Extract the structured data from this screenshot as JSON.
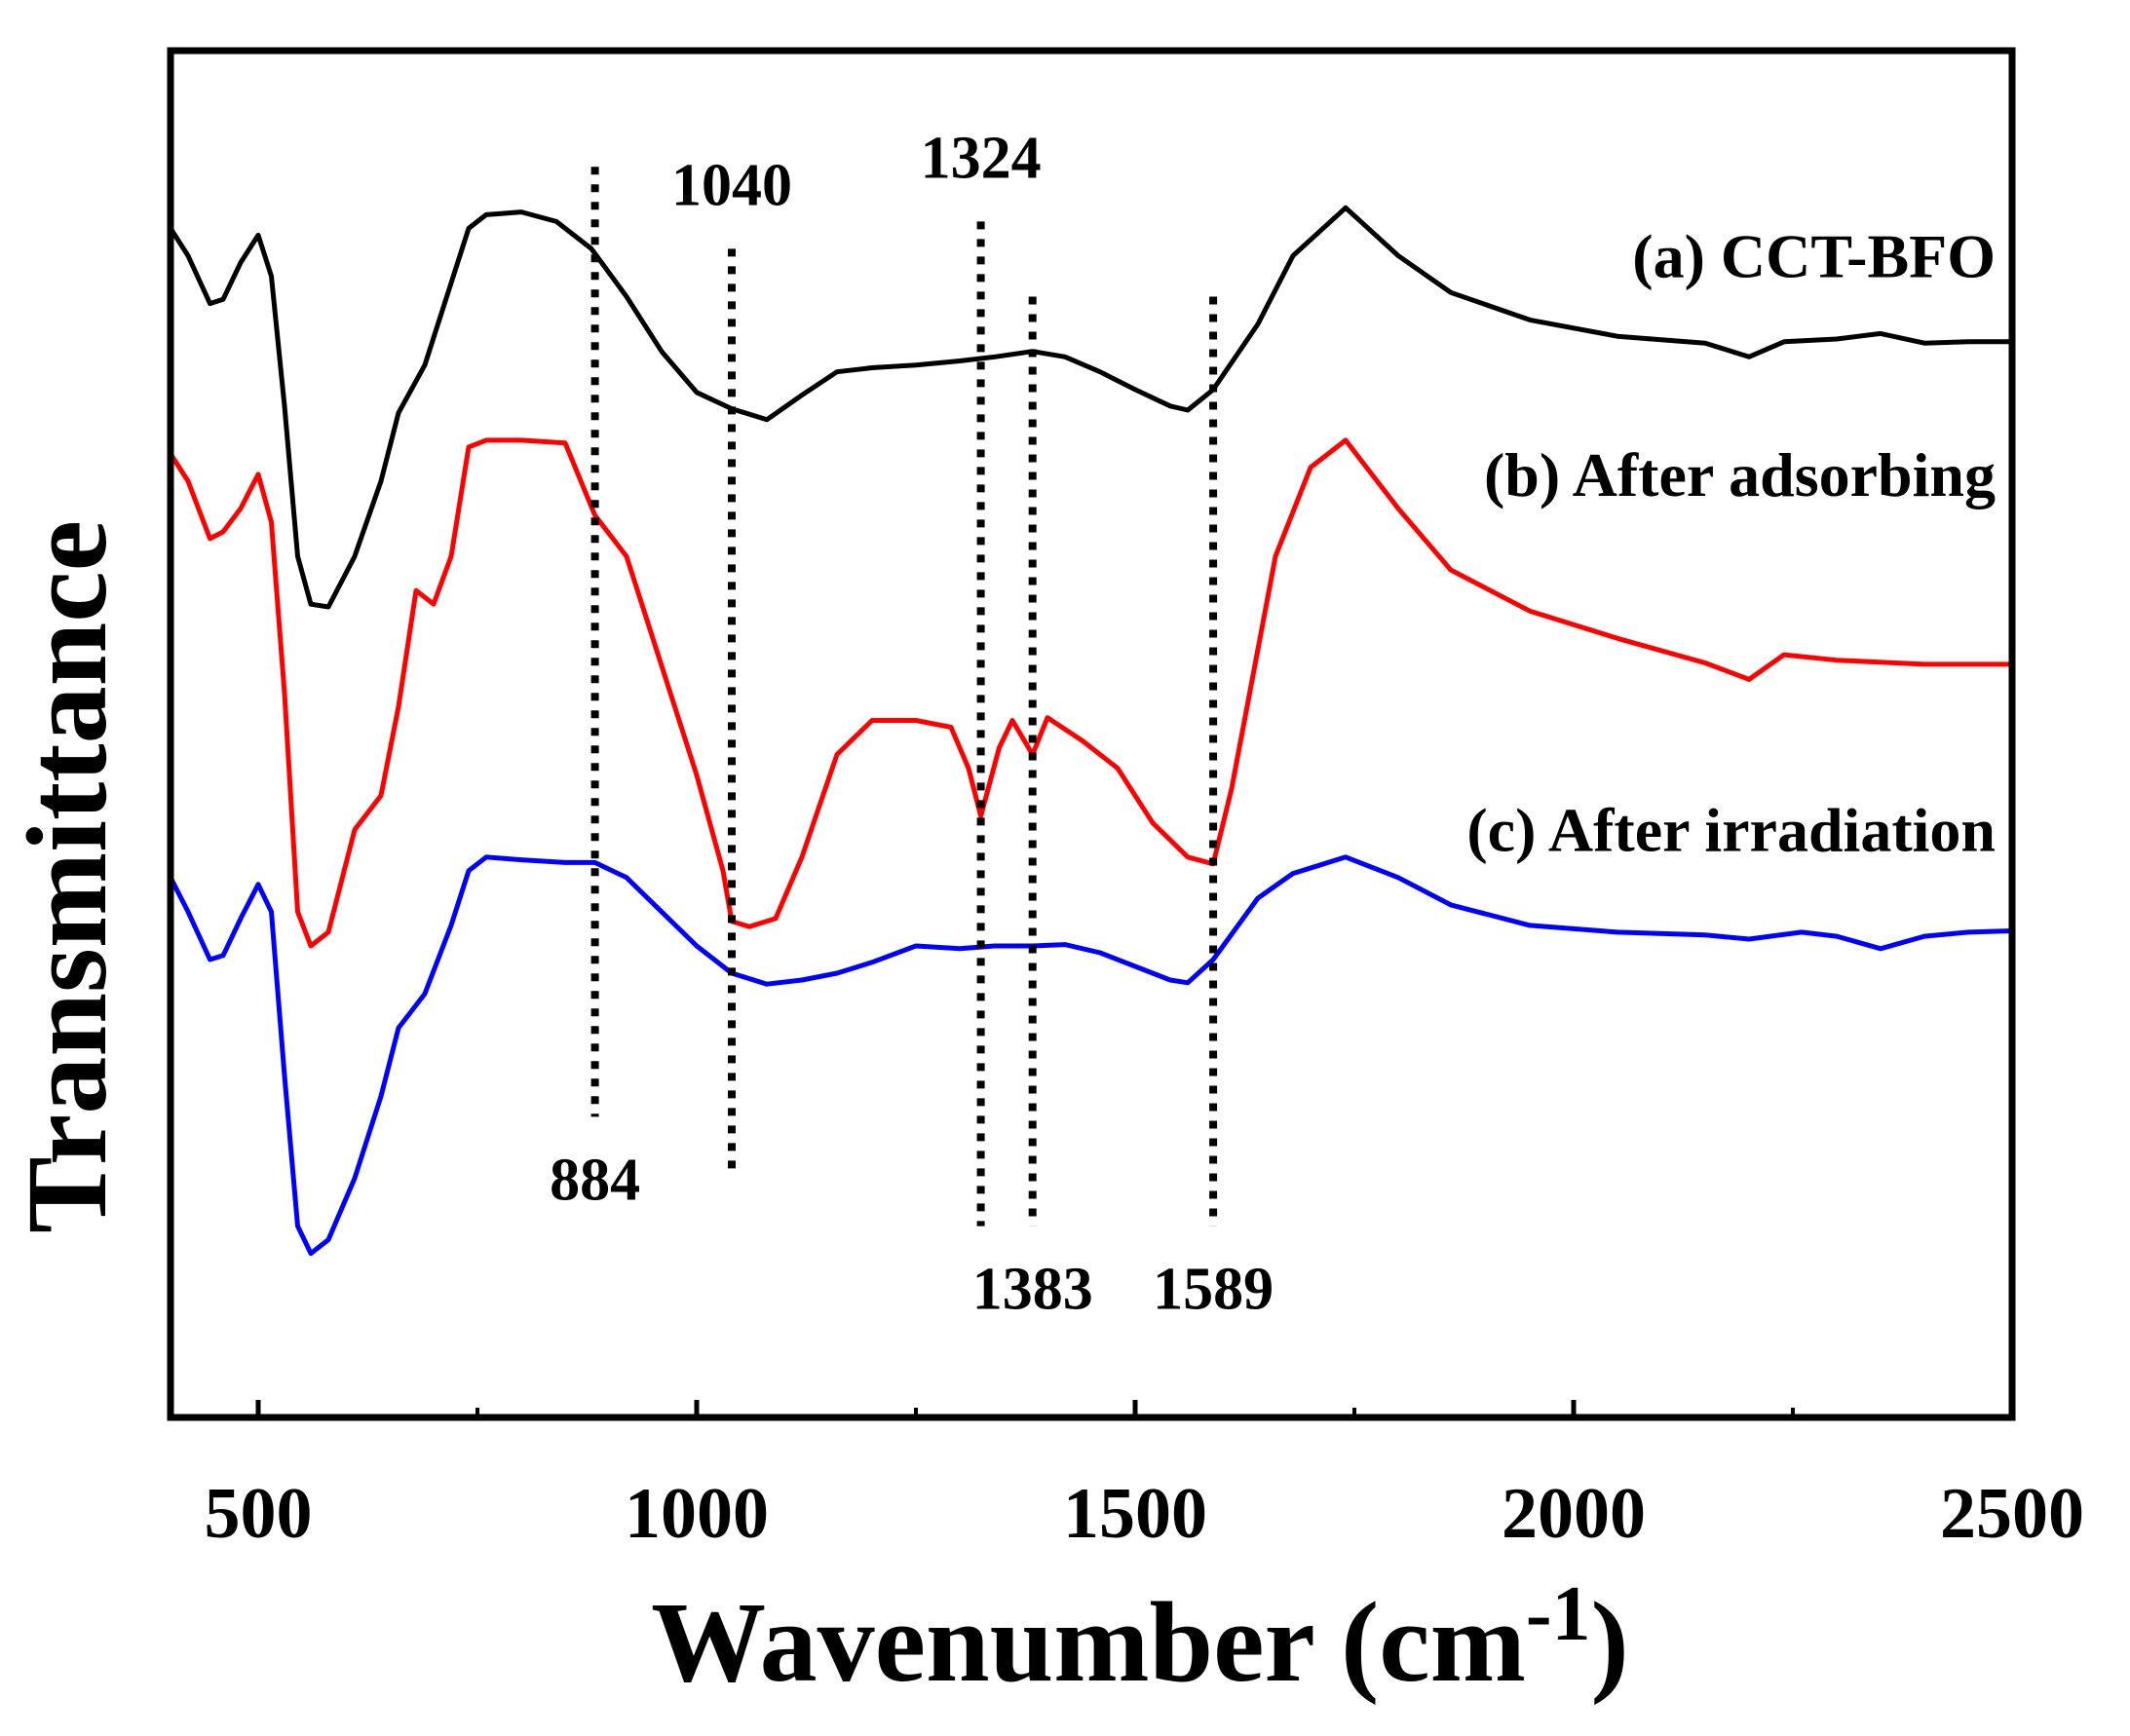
{
  "chart_data": {
    "type": "line",
    "title": "",
    "xlabel": "Wavenumber",
    "xlabel_unit_base": "(cm",
    "xlabel_unit_exp": "-1",
    "xlabel_unit_close": ")",
    "ylabel": "Transmittance",
    "xlim": [
      400,
      2500
    ],
    "ylim": [
      0,
      100
    ],
    "x_ticks": [
      500,
      1000,
      1500,
      2000,
      2500
    ],
    "y_ticks_shown": false,
    "grid": false,
    "legend": "inline labels, right side",
    "series": [
      {
        "name": "(a) CCT-BFO",
        "color": "#000000",
        "points": [
          [
            400,
            87.0
          ],
          [
            420,
            85.0
          ],
          [
            445,
            81.5
          ],
          [
            460,
            81.8
          ],
          [
            480,
            84.5
          ],
          [
            500,
            86.5
          ],
          [
            515,
            83.5
          ],
          [
            530,
            74.0
          ],
          [
            545,
            63.0
          ],
          [
            560,
            59.5
          ],
          [
            580,
            59.3
          ],
          [
            610,
            63.0
          ],
          [
            640,
            68.5
          ],
          [
            660,
            73.5
          ],
          [
            690,
            77.0
          ],
          [
            720,
            83.0
          ],
          [
            740,
            87.0
          ],
          [
            760,
            88.0
          ],
          [
            800,
            88.2
          ],
          [
            840,
            87.5
          ],
          [
            880,
            85.5
          ],
          [
            920,
            82.0
          ],
          [
            960,
            78.0
          ],
          [
            1000,
            75.0
          ],
          [
            1040,
            73.8
          ],
          [
            1080,
            73.0
          ],
          [
            1120,
            74.8
          ],
          [
            1160,
            76.5
          ],
          [
            1200,
            76.8
          ],
          [
            1250,
            77.0
          ],
          [
            1300,
            77.3
          ],
          [
            1340,
            77.6
          ],
          [
            1383,
            78.0
          ],
          [
            1420,
            77.6
          ],
          [
            1460,
            76.5
          ],
          [
            1500,
            75.2
          ],
          [
            1540,
            74.0
          ],
          [
            1560,
            73.7
          ],
          [
            1589,
            75.2
          ],
          [
            1640,
            80.0
          ],
          [
            1680,
            85.0
          ],
          [
            1740,
            88.5
          ],
          [
            1800,
            85.0
          ],
          [
            1860,
            82.3
          ],
          [
            1950,
            80.3
          ],
          [
            2050,
            79.1
          ],
          [
            2150,
            78.6
          ],
          [
            2200,
            77.6
          ],
          [
            2240,
            78.7
          ],
          [
            2300,
            78.9
          ],
          [
            2350,
            79.3
          ],
          [
            2400,
            78.6
          ],
          [
            2450,
            78.7
          ],
          [
            2500,
            78.7
          ]
        ]
      },
      {
        "name": "(b) After adsorbing",
        "color": "#ff0000",
        "points": [
          [
            400,
            70.5
          ],
          [
            420,
            68.5
          ],
          [
            445,
            64.3
          ],
          [
            460,
            64.8
          ],
          [
            480,
            66.5
          ],
          [
            500,
            69.0
          ],
          [
            515,
            65.5
          ],
          [
            530,
            53.0
          ],
          [
            545,
            37.0
          ],
          [
            560,
            34.5
          ],
          [
            580,
            35.5
          ],
          [
            610,
            43.0
          ],
          [
            640,
            45.5
          ],
          [
            660,
            52.0
          ],
          [
            680,
            60.5
          ],
          [
            700,
            59.5
          ],
          [
            720,
            63.0
          ],
          [
            740,
            71.0
          ],
          [
            760,
            71.5
          ],
          [
            800,
            71.5
          ],
          [
            850,
            71.3
          ],
          [
            884,
            66.0
          ],
          [
            920,
            63.0
          ],
          [
            960,
            55.0
          ],
          [
            1000,
            47.0
          ],
          [
            1030,
            40.0
          ],
          [
            1040,
            36.3
          ],
          [
            1060,
            35.9
          ],
          [
            1090,
            36.5
          ],
          [
            1120,
            41.0
          ],
          [
            1160,
            48.5
          ],
          [
            1200,
            51.0
          ],
          [
            1250,
            51.0
          ],
          [
            1290,
            50.5
          ],
          [
            1310,
            47.5
          ],
          [
            1324,
            44.0
          ],
          [
            1345,
            49.0
          ],
          [
            1360,
            51.0
          ],
          [
            1383,
            48.5
          ],
          [
            1400,
            51.2
          ],
          [
            1440,
            49.5
          ],
          [
            1480,
            47.5
          ],
          [
            1520,
            43.5
          ],
          [
            1560,
            41.0
          ],
          [
            1589,
            40.5
          ],
          [
            1610,
            46.0
          ],
          [
            1660,
            63.0
          ],
          [
            1700,
            69.5
          ],
          [
            1740,
            71.5
          ],
          [
            1800,
            66.5
          ],
          [
            1860,
            62.0
          ],
          [
            1950,
            59.0
          ],
          [
            2050,
            57.0
          ],
          [
            2150,
            55.2
          ],
          [
            2200,
            54.0
          ],
          [
            2240,
            55.8
          ],
          [
            2300,
            55.4
          ],
          [
            2400,
            55.1
          ],
          [
            2500,
            55.1
          ]
        ]
      },
      {
        "name": "(c) After irradiation",
        "color": "#0000ff",
        "points": [
          [
            400,
            39.5
          ],
          [
            420,
            37.0
          ],
          [
            445,
            33.5
          ],
          [
            460,
            33.8
          ],
          [
            480,
            36.5
          ],
          [
            500,
            39.0
          ],
          [
            515,
            37.0
          ],
          [
            530,
            25.0
          ],
          [
            545,
            14.0
          ],
          [
            560,
            12.0
          ],
          [
            580,
            13.0
          ],
          [
            610,
            17.5
          ],
          [
            640,
            23.5
          ],
          [
            660,
            28.5
          ],
          [
            690,
            31.0
          ],
          [
            720,
            36.0
          ],
          [
            740,
            40.0
          ],
          [
            760,
            41.0
          ],
          [
            800,
            40.8
          ],
          [
            850,
            40.6
          ],
          [
            884,
            40.6
          ],
          [
            920,
            39.5
          ],
          [
            960,
            37.0
          ],
          [
            1000,
            34.5
          ],
          [
            1040,
            32.5
          ],
          [
            1080,
            31.7
          ],
          [
            1120,
            32.0
          ],
          [
            1160,
            32.5
          ],
          [
            1200,
            33.3
          ],
          [
            1250,
            34.5
          ],
          [
            1300,
            34.3
          ],
          [
            1340,
            34.5
          ],
          [
            1383,
            34.5
          ],
          [
            1420,
            34.6
          ],
          [
            1460,
            34.0
          ],
          [
            1500,
            33.0
          ],
          [
            1540,
            32.0
          ],
          [
            1560,
            31.8
          ],
          [
            1589,
            33.5
          ],
          [
            1640,
            38.0
          ],
          [
            1680,
            39.8
          ],
          [
            1740,
            41.0
          ],
          [
            1800,
            39.5
          ],
          [
            1860,
            37.5
          ],
          [
            1950,
            36.0
          ],
          [
            2050,
            35.5
          ],
          [
            2150,
            35.3
          ],
          [
            2200,
            35.0
          ],
          [
            2260,
            35.5
          ],
          [
            2300,
            35.2
          ],
          [
            2350,
            34.3
          ],
          [
            2400,
            35.2
          ],
          [
            2450,
            35.5
          ],
          [
            2500,
            35.6
          ]
        ]
      }
    ],
    "series_labels": [
      {
        "text": "(a) CCT-BFO",
        "anchor_y": 85
      },
      {
        "text": "(b) After adsorbing",
        "anchor_y": 69
      },
      {
        "text": "(c) After irradiation",
        "anchor_y": 43
      }
    ],
    "annotations": [
      {
        "label": "884",
        "x": 884,
        "y_from": 22.0,
        "y_to": 91.5,
        "label_pos": "below"
      },
      {
        "label": "1040",
        "x": 1040,
        "y_from": 18.0,
        "y_to": 85.5,
        "label_pos": "above"
      },
      {
        "label": "1324",
        "x": 1324,
        "y_from": 14.0,
        "y_to": 87.5,
        "label_pos": "above"
      },
      {
        "label": "1383",
        "x": 1383,
        "y_from": 14.0,
        "y_to": 82.0,
        "label_pos": "below"
      },
      {
        "label": "1589",
        "x": 1589,
        "y_from": 14.0,
        "y_to": 82.0,
        "label_pos": "below"
      }
    ]
  }
}
